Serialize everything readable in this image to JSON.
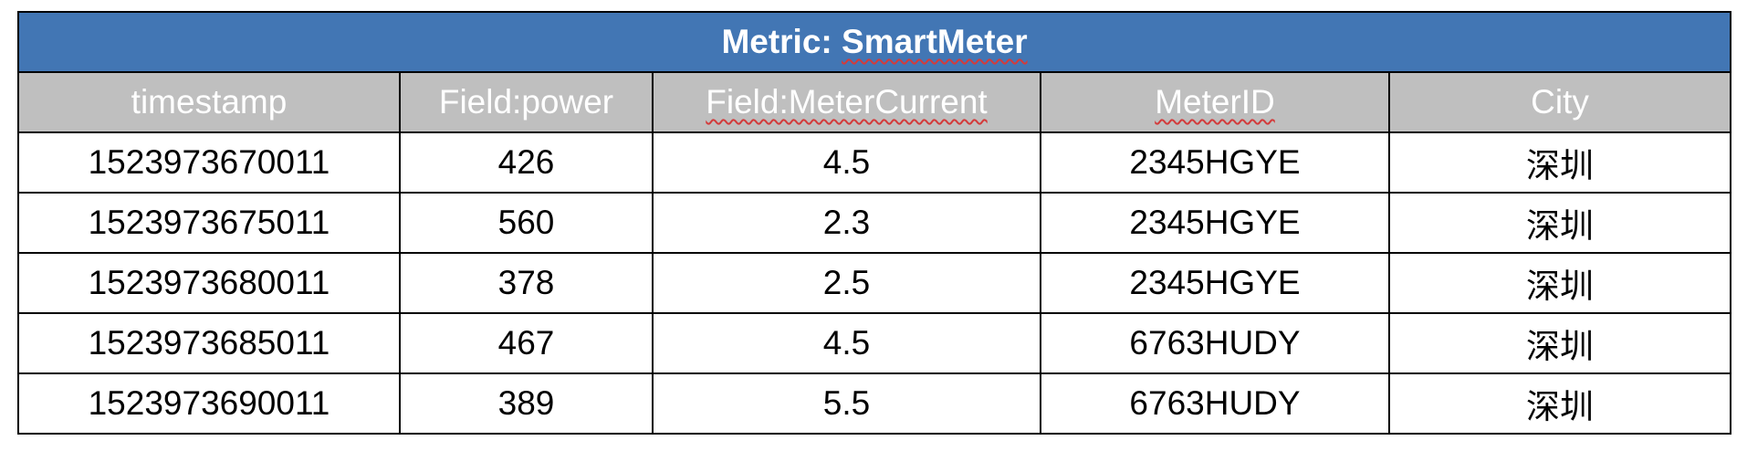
{
  "table": {
    "title_prefix": "Metric: ",
    "title_name": "SmartMeter",
    "columns": [
      {
        "label": "timestamp",
        "spellcheck": false
      },
      {
        "label": "Field:power",
        "spellcheck": false
      },
      {
        "label": "Field:MeterCurrent",
        "spellcheck": true
      },
      {
        "label": "MeterID",
        "spellcheck": true
      },
      {
        "label": "City",
        "spellcheck": false
      }
    ],
    "rows": [
      [
        "1523973670011",
        "426",
        "4.5",
        "2345HGYE",
        "深圳"
      ],
      [
        "1523973675011",
        "560",
        "2.3",
        "2345HGYE",
        "深圳"
      ],
      [
        "1523973680011",
        "378",
        "2.5",
        "2345HGYE",
        "深圳"
      ],
      [
        "1523973685011",
        "467",
        "4.5",
        "6763HUDY",
        "深圳"
      ],
      [
        "1523973690011",
        "389",
        "5.5",
        "6763HUDY",
        "深圳"
      ]
    ]
  },
  "colors": {
    "title_bg": "#4276b4",
    "header_bg": "#bfbfbf",
    "border": "#000000",
    "spellcheck_underline": "#d33b3b"
  }
}
